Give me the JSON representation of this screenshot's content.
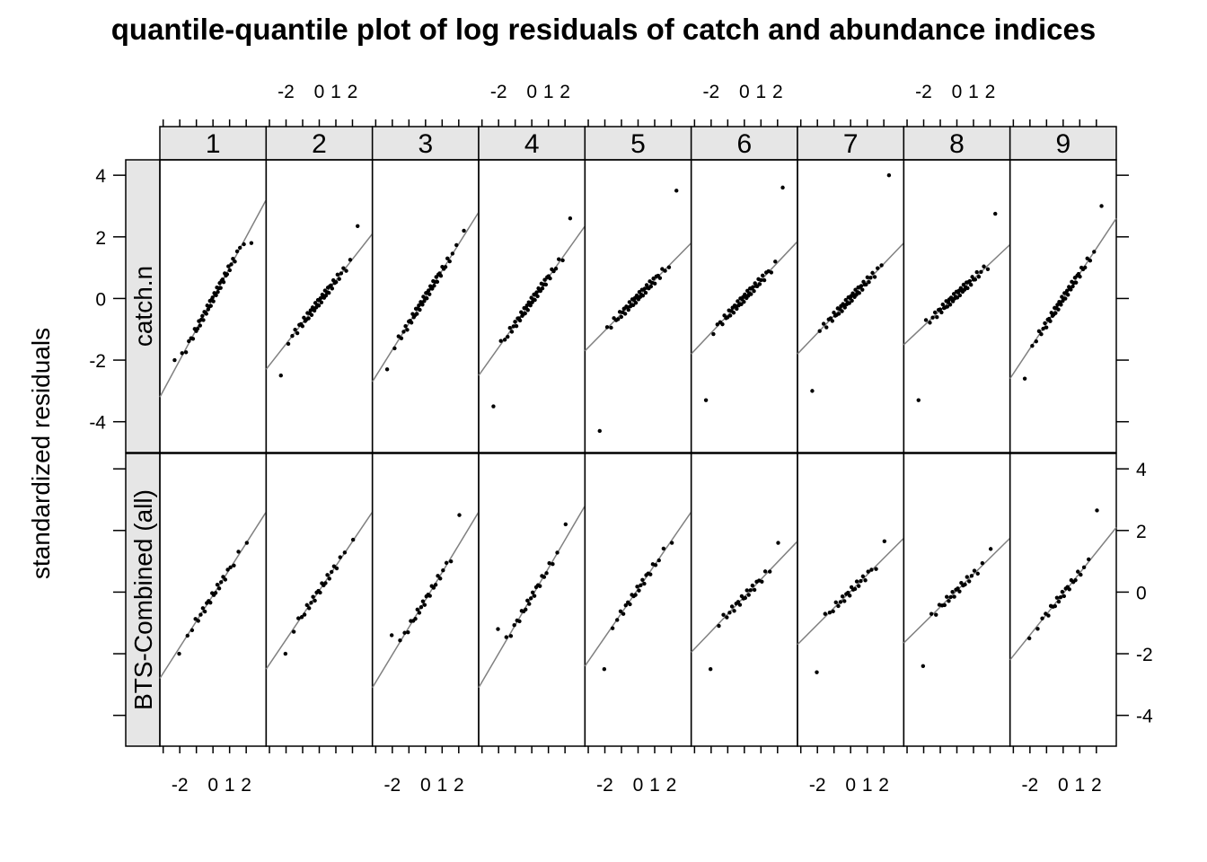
{
  "chart_data": {
    "type": "scatter",
    "title": "quantile-quantile plot of log residuals of catch and abundance indices",
    "ylabel": "standardized residuals",
    "xlabel": "",
    "panel_columns": [
      "1",
      "2",
      "3",
      "4",
      "5",
      "6",
      "7",
      "8",
      "9"
    ],
    "panel_rows": [
      "catch.n",
      "BTS-Combined (all)"
    ],
    "xlim": [
      -3.2,
      3.2
    ],
    "ylim": [
      -5,
      4.5
    ],
    "x_ticks": [
      -2,
      0,
      1,
      2
    ],
    "x_tick_labels": [
      "-2",
      "0",
      "1",
      "2"
    ],
    "y_ticks": [
      -4,
      -2,
      0,
      2,
      4
    ],
    "y_tick_labels": [
      "-4",
      "-2",
      "0",
      "2",
      "4"
    ],
    "grid": false,
    "colors": {
      "points": "#000000",
      "reference_line": "#808080",
      "strip": "#e6e6e6",
      "frame": "#000000"
    },
    "panels": [
      {
        "row": "catch.n",
        "col": "1",
        "n": 48,
        "extremes": [
          -2.0,
          1.8
        ],
        "line_at_ends": [
          -3.2,
          3.2
        ]
      },
      {
        "row": "catch.n",
        "col": "2",
        "n": 48,
        "extremes": [
          -2.5,
          2.35
        ],
        "line_at_ends": [
          -2.3,
          2.1
        ]
      },
      {
        "row": "catch.n",
        "col": "3",
        "n": 48,
        "extremes": [
          -2.3,
          2.2
        ],
        "line_at_ends": [
          -2.7,
          2.8
        ]
      },
      {
        "row": "catch.n",
        "col": "4",
        "n": 48,
        "extremes": [
          -3.5,
          2.6
        ],
        "line_at_ends": [
          -2.5,
          2.35
        ]
      },
      {
        "row": "catch.n",
        "col": "5",
        "n": 48,
        "extremes": [
          -4.3,
          3.5
        ],
        "line_at_ends": [
          -1.7,
          1.8
        ]
      },
      {
        "row": "catch.n",
        "col": "6",
        "n": 48,
        "extremes": [
          -3.3,
          3.6
        ],
        "line_at_ends": [
          -1.8,
          1.85
        ]
      },
      {
        "row": "catch.n",
        "col": "7",
        "n": 48,
        "extremes": [
          -3.0,
          4.0
        ],
        "line_at_ends": [
          -1.8,
          1.8
        ]
      },
      {
        "row": "catch.n",
        "col": "8",
        "n": 48,
        "extremes": [
          -3.3,
          2.75
        ],
        "line_at_ends": [
          -1.5,
          1.75
        ]
      },
      {
        "row": "catch.n",
        "col": "9",
        "n": 48,
        "extremes": [
          -2.6,
          3.0
        ],
        "line_at_ends": [
          -2.6,
          2.6
        ]
      },
      {
        "row": "BTS-Combined (all)",
        "col": "1",
        "n": 24,
        "extremes": [
          -2.0,
          1.6
        ],
        "line_at_ends": [
          -2.8,
          2.6
        ]
      },
      {
        "row": "BTS-Combined (all)",
        "col": "2",
        "n": 24,
        "extremes": [
          -2.0,
          1.7
        ],
        "line_at_ends": [
          -2.5,
          2.6
        ]
      },
      {
        "row": "BTS-Combined (all)",
        "col": "3",
        "n": 24,
        "extremes": [
          -1.4,
          2.5
        ],
        "line_at_ends": [
          -3.1,
          2.6
        ]
      },
      {
        "row": "BTS-Combined (all)",
        "col": "4",
        "n": 24,
        "extremes": [
          -1.2,
          2.2
        ],
        "line_at_ends": [
          -3.1,
          2.8
        ]
      },
      {
        "row": "BTS-Combined (all)",
        "col": "5",
        "n": 24,
        "extremes": [
          -2.5,
          1.6
        ],
        "line_at_ends": [
          -2.4,
          2.6
        ]
      },
      {
        "row": "BTS-Combined (all)",
        "col": "6",
        "n": 24,
        "extremes": [
          -2.5,
          1.6
        ],
        "line_at_ends": [
          -1.95,
          1.65
        ]
      },
      {
        "row": "BTS-Combined (all)",
        "col": "7",
        "n": 24,
        "extremes": [
          -2.6,
          1.65
        ],
        "line_at_ends": [
          -1.7,
          1.75
        ]
      },
      {
        "row": "BTS-Combined (all)",
        "col": "8",
        "n": 24,
        "extremes": [
          -2.4,
          1.4
        ],
        "line_at_ends": [
          -1.65,
          1.75
        ]
      },
      {
        "row": "BTS-Combined (all)",
        "col": "9",
        "n": 24,
        "extremes": [
          -1.5,
          2.65
        ],
        "line_at_ends": [
          -2.2,
          2.1
        ]
      }
    ]
  }
}
